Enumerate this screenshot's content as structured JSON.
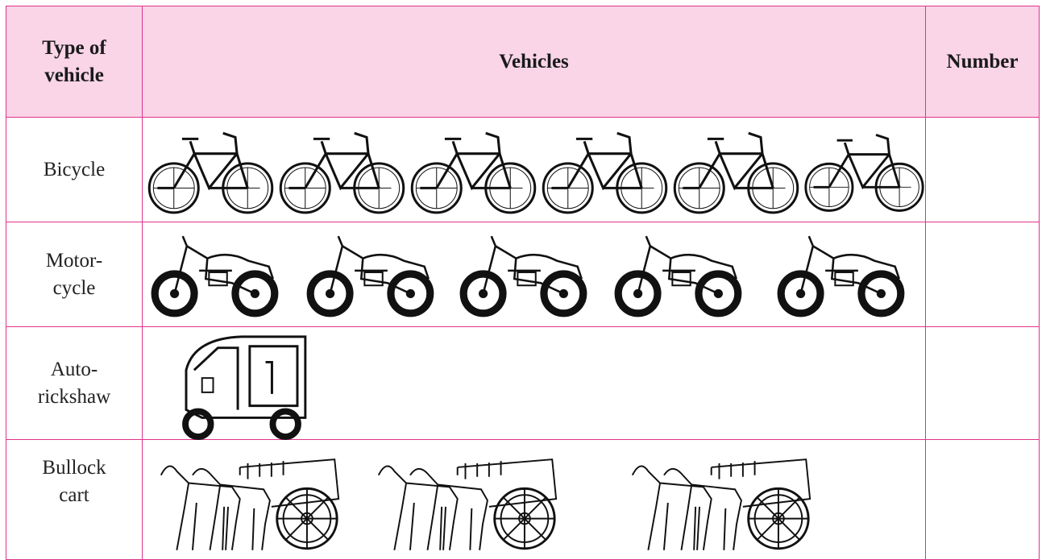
{
  "table": {
    "header": {
      "type_lines": [
        "Type of",
        "vehicle"
      ],
      "vehicles": "Vehicles",
      "number": "Number"
    },
    "rows": [
      {
        "lines": [
          "Bicycle"
        ]
      },
      {
        "lines": [
          "Motor-",
          "cycle"
        ]
      },
      {
        "lines": [
          "Auto-",
          "rickshaw"
        ]
      },
      {
        "lines": [
          "Bullock",
          "cart"
        ]
      }
    ]
  }
}
